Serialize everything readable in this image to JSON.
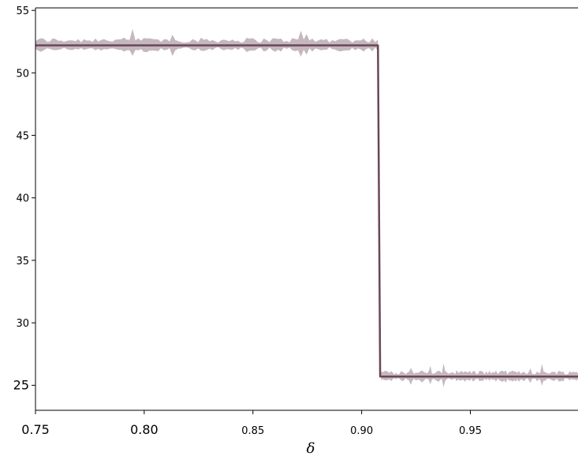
{
  "chart_data": {
    "type": "line",
    "title": "",
    "xlabel": "δ",
    "ylabel": "",
    "xlim": [
      0.75,
      0.9995
    ],
    "ylim": [
      23.0,
      55.2
    ],
    "grid": false,
    "legend": "none",
    "xticks": [
      {
        "value": 0.75,
        "label": "0.75",
        "size": 16
      },
      {
        "value": 0.8,
        "label": "0.80",
        "size": 16
      },
      {
        "value": 0.85,
        "label": "0.85",
        "size": 13
      },
      {
        "value": 0.9,
        "label": "0.90",
        "size": 13
      },
      {
        "value": 0.95,
        "label": "0.95",
        "size": 13
      }
    ],
    "yticks": [
      {
        "value": 25,
        "label": "25",
        "size": 16
      },
      {
        "value": 30,
        "label": "30",
        "size": 13
      },
      {
        "value": 35,
        "label": "35",
        "size": 13
      },
      {
        "value": 40,
        "label": "40",
        "size": 13
      },
      {
        "value": 45,
        "label": "45",
        "size": 13
      },
      {
        "value": 50,
        "label": "50",
        "size": 13
      },
      {
        "value": 55,
        "label": "55",
        "size": 13
      }
    ],
    "line_color": "#6b4558",
    "band_color": "#c4b8bd",
    "series": [
      {
        "x": [
          0.75,
          0.9075,
          0.9085,
          0.9995
        ],
        "y": [
          52.2,
          52.2,
          25.7,
          25.7
        ]
      }
    ],
    "band": {
      "segments": [
        {
          "x_start": 0.75,
          "x_end": 0.9075,
          "center": 52.2,
          "max_halfwidth": 1.4
        },
        {
          "x_start": 0.909,
          "x_end": 0.9995,
          "center": 25.7,
          "max_halfwidth": 1.1
        }
      ]
    }
  }
}
